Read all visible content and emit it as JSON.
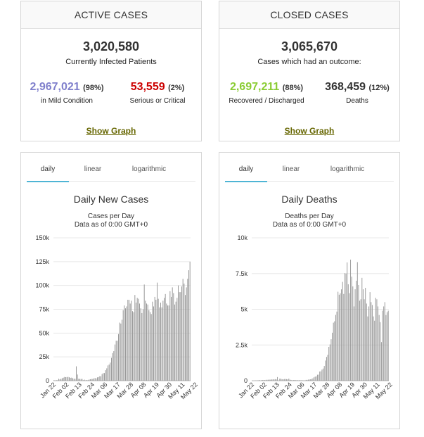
{
  "active": {
    "header": "ACTIVE CASES",
    "total": "3,020,580",
    "caption": "Currently Infected Patients",
    "left": {
      "value": "2,967,021",
      "pct": "(98%)",
      "label": "in Mild Condition",
      "color": "#8080cc"
    },
    "right": {
      "value": "53,559",
      "pct": "(2%)",
      "label": "Serious or Critical",
      "color": "#cc0000"
    },
    "link": "Show Graph"
  },
  "closed": {
    "header": "CLOSED CASES",
    "total": "3,065,670",
    "caption": "Cases which had an outcome:",
    "left": {
      "value": "2,697,211",
      "pct": "(88%)",
      "label": "Recovered / Discharged",
      "color": "#8acc33"
    },
    "right": {
      "value": "368,459",
      "pct": "(12%)",
      "label": "Deaths",
      "color": "#333333"
    },
    "link": "Show Graph"
  },
  "tabs": {
    "daily": "daily",
    "linear": "linear",
    "logarithmic": "logarithmic"
  },
  "chart_data": [
    {
      "type": "bar",
      "title": "Daily New Cases",
      "subtitle1": "Cases per Day",
      "subtitle2": "Data as of 0:00 GMT+0",
      "ylim": [
        0,
        150000
      ],
      "yticks": [
        "0",
        "25k",
        "50k",
        "75k",
        "100k",
        "125k",
        "150k"
      ],
      "xticks": [
        "Jan 22",
        "Feb 02",
        "Feb 13",
        "Feb 24",
        "Mar 06",
        "Mar 17",
        "Mar 28",
        "Apr 08",
        "Apr 19",
        "Apr 30",
        "May 11",
        "May 22"
      ],
      "x_start": "Jan 22",
      "values": [
        580,
        100,
        600,
        500,
        2000,
        1500,
        2100,
        2600,
        3200,
        3900,
        3700,
        3800,
        4000,
        3600,
        3000,
        3200,
        2600,
        2100,
        2000,
        15100,
        6500,
        2000,
        1900,
        1800,
        1900,
        500,
        1100,
        400,
        700,
        600,
        1300,
        1500,
        1800,
        1800,
        2400,
        2800,
        2400,
        3500,
        3800,
        4700,
        4700,
        7000,
        8000,
        8000,
        11000,
        13000,
        16000,
        17000,
        19000,
        24000,
        29000,
        31000,
        38000,
        42000,
        42000,
        49000,
        61000,
        60000,
        64000,
        74000,
        79000,
        76000,
        78000,
        85000,
        85000,
        81000,
        84000,
        73000,
        72000,
        90000,
        82000,
        87000,
        86000,
        81000,
        76000,
        71000,
        75000,
        101000,
        84000,
        81000,
        80000,
        74000,
        72000,
        70000,
        83000,
        78000,
        88000,
        85000,
        103000,
        86000,
        77000,
        82000,
        77000,
        84000,
        87000,
        91000,
        81000,
        79000,
        79000,
        94000,
        88000,
        98000,
        92000,
        80000,
        83000,
        87000,
        100000,
        93000,
        93000,
        99000,
        107000,
        102000,
        90000,
        98000,
        107000,
        116000,
        125000
      ]
    },
    {
      "type": "bar",
      "title": "Daily Deaths",
      "subtitle1": "Deaths per Day",
      "subtitle2": "Data as of 0:00 GMT+0",
      "ylim": [
        0,
        10000
      ],
      "yticks": [
        "0",
        "2.5k",
        "5k",
        "7.5k",
        "10k"
      ],
      "xticks": [
        "Jan 22",
        "Feb 02",
        "Feb 13",
        "Feb 24",
        "Mar 06",
        "Mar 17",
        "Mar 28",
        "Apr 08",
        "Apr 19",
        "Apr 30",
        "May 11",
        "May 22"
      ],
      "x_start": "Jan 22",
      "values": [
        17,
        1,
        8,
        16,
        14,
        26,
        49,
        2,
        38,
        43,
        46,
        45,
        57,
        64,
        66,
        73,
        73,
        86,
        89,
        97,
        108,
        97,
        254,
        13,
        143,
        142,
        106,
        98,
        115,
        118,
        109,
        97,
        150,
        71,
        52,
        29,
        44,
        47,
        35,
        42,
        31,
        38,
        31,
        30,
        28,
        27,
        22,
        55,
        55,
        75,
        86,
        98,
        127,
        162,
        240,
        285,
        308,
        418,
        422,
        645,
        658,
        781,
        853,
        1030,
        1410,
        1665,
        1813,
        2365,
        2539,
        2902,
        3360,
        4062,
        4160,
        4607,
        4838,
        6228,
        6018,
        6121,
        6395,
        6920,
        6071,
        7527,
        7500,
        8283,
        6750,
        6128,
        8476,
        7286,
        6600,
        5200,
        6400,
        7000,
        8300,
        6700,
        5600,
        5700,
        7200,
        6400,
        5700,
        6500,
        5400,
        4500,
        5200,
        6200,
        5500,
        5300,
        4500,
        4200,
        5800,
        5700,
        5200,
        4600,
        4100,
        2700,
        4900,
        5200,
        5500,
        4600,
        4800,
        4900
      ]
    }
  ]
}
